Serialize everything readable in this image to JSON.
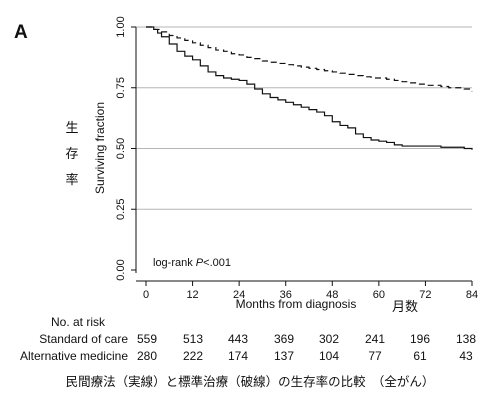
{
  "panel_label": "A",
  "chart_data": {
    "type": "line",
    "xlabel": "Months from diagnosis",
    "xlabel_jp": "月数",
    "ylabel": "Surviving fraction",
    "ylabel_jp": "生存率",
    "xlim": [
      0,
      84
    ],
    "ylim": [
      0,
      1
    ],
    "x_ticks": [
      0,
      12,
      24,
      36,
      48,
      60,
      72,
      84
    ],
    "y_ticks": [
      "0.00",
      "0.25",
      "0.50",
      "0.75",
      "1.00"
    ],
    "grid": "horizontal",
    "annotation": "log-rank P<.001",
    "series": [
      {
        "name": "Standard of care",
        "style": "dashed",
        "x": [
          0,
          2,
          4,
          6,
          8,
          10,
          12,
          14,
          16,
          18,
          20,
          22,
          24,
          26,
          28,
          30,
          32,
          34,
          36,
          38,
          40,
          42,
          44,
          46,
          48,
          50,
          52,
          54,
          56,
          58,
          60,
          62,
          64,
          66,
          68,
          70,
          72,
          74,
          76,
          78,
          80,
          82,
          84
        ],
        "y": [
          1.0,
          0.99,
          0.98,
          0.965,
          0.955,
          0.945,
          0.935,
          0.925,
          0.915,
          0.905,
          0.9,
          0.89,
          0.885,
          0.875,
          0.87,
          0.86,
          0.855,
          0.85,
          0.845,
          0.84,
          0.835,
          0.83,
          0.825,
          0.82,
          0.815,
          0.81,
          0.805,
          0.8,
          0.795,
          0.79,
          0.79,
          0.785,
          0.78,
          0.775,
          0.77,
          0.765,
          0.76,
          0.76,
          0.755,
          0.75,
          0.75,
          0.745,
          0.735
        ]
      },
      {
        "name": "Alternative medicine",
        "style": "solid",
        "x": [
          0,
          2,
          3,
          4,
          6,
          8,
          10,
          12,
          14,
          16,
          18,
          20,
          22,
          24,
          26,
          28,
          30,
          32,
          34,
          36,
          38,
          40,
          42,
          44,
          46,
          48,
          50,
          52,
          54,
          56,
          58,
          60,
          62,
          64,
          66,
          68,
          70,
          72,
          74,
          76,
          78,
          80,
          82,
          84
        ],
        "y": [
          1.0,
          0.99,
          0.975,
          0.96,
          0.93,
          0.9,
          0.88,
          0.865,
          0.84,
          0.815,
          0.8,
          0.79,
          0.785,
          0.78,
          0.765,
          0.745,
          0.725,
          0.71,
          0.7,
          0.69,
          0.68,
          0.67,
          0.66,
          0.65,
          0.635,
          0.61,
          0.595,
          0.585,
          0.56,
          0.545,
          0.535,
          0.53,
          0.525,
          0.515,
          0.51,
          0.51,
          0.51,
          0.51,
          0.51,
          0.505,
          0.505,
          0.505,
          0.5,
          0.495
        ]
      }
    ]
  },
  "risk_table": {
    "header": "No. at risk",
    "rows": [
      {
        "label": "Standard of care",
        "values": [
          "559",
          "513",
          "443",
          "369",
          "302",
          "241",
          "196",
          "138"
        ]
      },
      {
        "label": "Alternative medicine",
        "values": [
          "280",
          "222",
          "174",
          "137",
          "104",
          "77",
          "61",
          "43"
        ]
      }
    ]
  },
  "caption": "民間療法（実線）と標準治療（破線）の生存率の比較　（全がん）"
}
